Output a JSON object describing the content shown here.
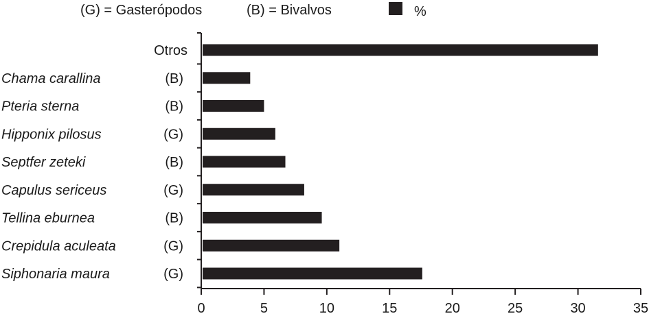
{
  "legend": {
    "gastropods": "(G) = Gasterópodos",
    "bivalves": "(B) = Bivalvos",
    "series": "%"
  },
  "chart_data": {
    "type": "bar",
    "orientation": "horizontal",
    "title": "",
    "xlabel": "",
    "ylabel": "",
    "xlim": [
      0,
      35
    ],
    "xticks": [
      "0",
      "5",
      "10",
      "15",
      "20",
      "25",
      "30",
      "35"
    ],
    "bar_color": "#231f20",
    "grid": false,
    "legend_position": "top",
    "categories": [
      {
        "name": "Otros",
        "group": "",
        "value": 31.6
      },
      {
        "name": "Chama carallina",
        "group": "(B)",
        "value": 3.9
      },
      {
        "name": "Pteria sterna",
        "group": "(B)",
        "value": 5.0
      },
      {
        "name": "Hipponix pilosus",
        "group": "(G)",
        "value": 5.9
      },
      {
        "name": "Septfer zeteki",
        "group": "(B)",
        "value": 6.7
      },
      {
        "name": "Capulus sericeus",
        "group": "(G)",
        "value": 8.2
      },
      {
        "name": "Tellina eburnea",
        "group": "(B)",
        "value": 9.6
      },
      {
        "name": "Crepidula aculeata",
        "group": "(G)",
        "value": 11.0
      },
      {
        "name": "Siphonaria maura",
        "group": "(G)",
        "value": 17.6
      }
    ]
  }
}
